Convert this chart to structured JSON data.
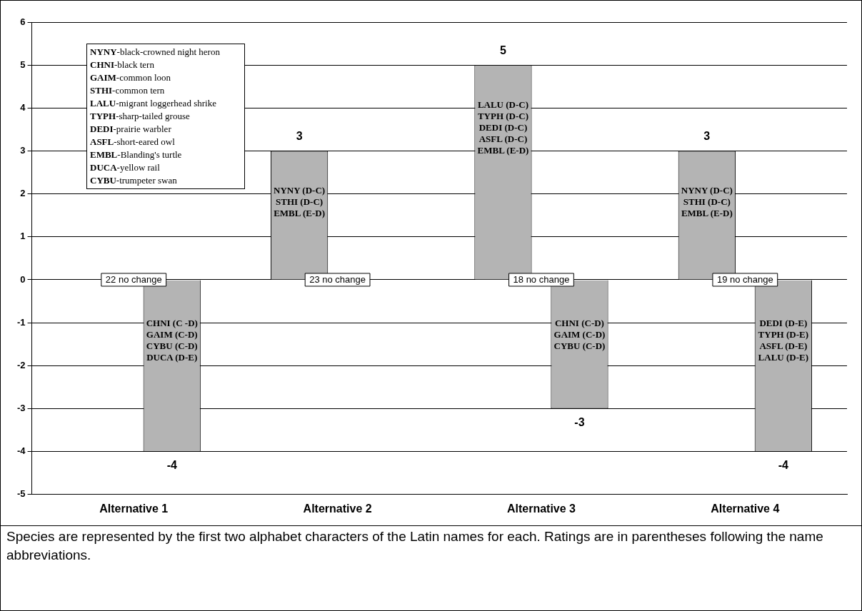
{
  "chart_data": {
    "type": "bar",
    "categories": [
      "Alternative 1",
      "Alternative 2",
      "Alternative 3",
      "Alternative 4"
    ],
    "series": [
      {
        "color": "#b4b4b4",
        "values": [
          null,
          3,
          5,
          3
        ]
      },
      {
        "color": "#b4b4b4",
        "values": [
          -4,
          null,
          -3,
          -4
        ]
      }
    ],
    "ylim": [
      -5,
      6
    ],
    "yticks": [
      -5,
      -4,
      -3,
      -2,
      -1,
      0,
      1,
      2,
      3,
      4,
      5,
      6
    ],
    "grid": "y",
    "legend": false,
    "data_labels": true,
    "annotations": [
      "NYNY-black-crowned night heron\nCHNI-black tern\nGAIM-common loon\nSTHI-common tern\nLALU-migrant loggerhead shrike\nTYPH-sharp-tailed grouse\nDEDI-prairie warbler\nASFL-short-eared owl\nEMBL-Blanding's turtle\nDUCA-yellow rail\nCYBU-trumpeter swan",
      "22 no change",
      "23 no change",
      "18 no change",
      "19 no change",
      "CHNI (C -D)\nGAIM (C-D)\nCYBU (C-D)\nDUCA (D-E)",
      "NYNY (D-C)\nSTHI (D-C)\nEMBL (E-D)",
      "LALU (D-C)\nTYPH (D-C)\nDEDI (D-C)\nASFL (D-C)\nEMBL (E-D)",
      "CHNI (C-D)\nGAIM (C-D)\nCYBU (C-D)",
      "NYNY (D-C)\nSTHI (D-C)\nEMBL (E-D)",
      "DEDI (D-E)\nTYPH (D-E)\nASFL (D-E)\nLALU (D-E)",
      "Species are represented by the first two alphabet characters of the Latin names for each. Ratings are in parentheses following the name abbreviations."
    ]
  }
}
